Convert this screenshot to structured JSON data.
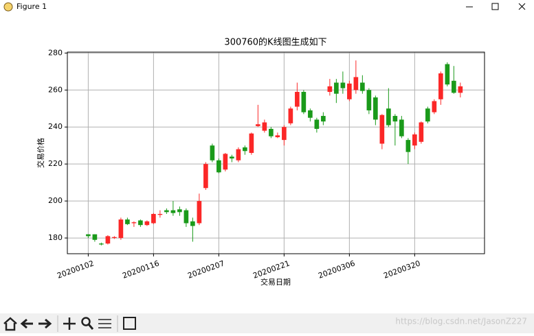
{
  "window": {
    "title": "Figure 1"
  },
  "chart_data": {
    "type": "candlestick",
    "title": "300760的K线图生成如下",
    "x_label": "交易日期",
    "y_label": "交易价格",
    "categories": [
      "20200102",
      null,
      null,
      null,
      null,
      null,
      null,
      null,
      null,
      null,
      "20200116",
      null,
      null,
      null,
      null,
      null,
      null,
      null,
      null,
      null,
      "20200207",
      null,
      null,
      null,
      null,
      null,
      null,
      null,
      null,
      null,
      "20200221",
      null,
      null,
      null,
      null,
      null,
      null,
      null,
      null,
      null,
      "20200306",
      null,
      null,
      null,
      null,
      null,
      null,
      null,
      null,
      null,
      "20200320",
      null,
      null,
      null,
      null,
      null,
      null,
      null
    ],
    "open": [
      182,
      182,
      177,
      177,
      180,
      180,
      190,
      188,
      189.5,
      187,
      188,
      192.5,
      195,
      195,
      195.5,
      195,
      189,
      188,
      207,
      230,
      222,
      217,
      224,
      222,
      229,
      226,
      240.5,
      238,
      239,
      234.5,
      233,
      242,
      251,
      259,
      249,
      244,
      246,
      259,
      264,
      264,
      255,
      260,
      264,
      260,
      256,
      231,
      250,
      246,
      244,
      233,
      230,
      232,
      250,
      248,
      255,
      274,
      265,
      258.5
    ],
    "high": [
      182,
      182,
      177.5,
      181.5,
      181,
      191,
      191,
      189,
      190,
      189.5,
      193.5,
      195,
      196,
      200,
      197,
      196,
      191,
      204,
      221,
      231,
      223,
      226,
      225,
      229,
      230,
      237,
      252,
      244,
      240,
      237,
      241,
      251,
      264,
      260,
      250,
      245,
      248,
      266,
      266,
      270,
      265,
      276,
      268,
      261,
      257,
      247,
      261,
      247,
      246,
      234,
      237,
      243,
      251,
      255,
      270,
      275,
      273,
      264
    ],
    "low": [
      180,
      178,
      176,
      176.5,
      179.5,
      179,
      187,
      186,
      186,
      186.5,
      187.5,
      191,
      193,
      192,
      192,
      186,
      178,
      187,
      206,
      221,
      215,
      216,
      221,
      221,
      225,
      225,
      240,
      237,
      234,
      234,
      230,
      241,
      249,
      247,
      243,
      237,
      241,
      257,
      253,
      258,
      254,
      258,
      258,
      247,
      241,
      228,
      240,
      230,
      234,
      220,
      228,
      231,
      242,
      247,
      252,
      262,
      258,
      256
    ],
    "close": [
      181,
      179,
      176.5,
      181,
      180.5,
      190,
      187.5,
      188.5,
      187,
      189,
      193,
      193,
      194,
      193.5,
      194,
      188,
      186.5,
      200,
      220,
      222,
      215.5,
      225.5,
      223,
      228,
      227,
      236.5,
      241.5,
      242.5,
      235,
      235.5,
      240,
      250,
      259,
      248,
      245,
      239,
      243,
      262,
      258,
      261,
      263.5,
      267,
      259.5,
      249,
      244,
      246.5,
      241,
      243,
      235,
      226.5,
      236,
      242.5,
      243,
      254,
      269,
      263,
      258.5,
      262
    ],
    "up_color": "#fb2727",
    "down_color": "#1a9a1a",
    "xlim": [
      -3.2,
      60.7
    ],
    "ylim": [
      171.5,
      280.5
    ],
    "yticks": [
      180,
      200,
      220,
      240,
      260,
      280
    ],
    "grid": true
  },
  "watermark": "https://blog.csdn.net/JasonZ227"
}
